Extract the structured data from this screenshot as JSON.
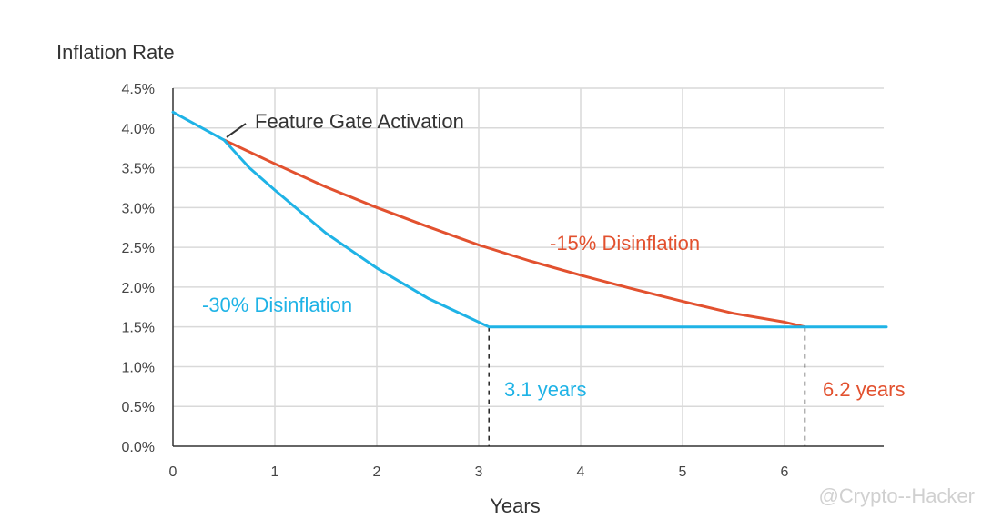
{
  "chart_data": {
    "type": "line",
    "title": "Inflation Rate",
    "xlabel": "Years",
    "ylabel": "Inflation Rate",
    "xlim": [
      0,
      7
    ],
    "ylim": [
      0,
      4.5
    ],
    "grid": true,
    "x_ticks": [
      0,
      1,
      2,
      3,
      4,
      5,
      6
    ],
    "x_tick_labels": [
      "0",
      "1",
      "2",
      "3",
      "4",
      "5",
      "6"
    ],
    "y_ticks": [
      0,
      0.5,
      1,
      1.5,
      2,
      2.5,
      3,
      3.5,
      4,
      4.5
    ],
    "y_tick_labels": [
      "0.0%",
      "0.5%",
      "1.0%",
      "1.5%",
      "2.0%",
      "2.5%",
      "3.0%",
      "3.5%",
      "4.0%",
      "4.5%"
    ],
    "series": [
      {
        "name": "-15% Disinflation",
        "color": "#e2512f",
        "x": [
          0.5,
          1,
          1.5,
          2,
          2.5,
          3,
          3.5,
          4,
          4.5,
          5,
          5.5,
          6,
          6.2
        ],
        "y": [
          3.85,
          3.55,
          3.26,
          3.0,
          2.76,
          2.53,
          2.33,
          2.15,
          1.98,
          1.82,
          1.67,
          1.56,
          1.5
        ]
      },
      {
        "name": "-30% Disinflation",
        "color": "#1fb3e6",
        "x": [
          0,
          0.5,
          0.75,
          1,
          1.5,
          2,
          2.5,
          3.1,
          7
        ],
        "y": [
          4.2,
          3.85,
          3.5,
          3.22,
          2.68,
          2.24,
          1.86,
          1.5,
          1.5
        ]
      }
    ],
    "annotations": [
      {
        "text": "Feature Gate Activation",
        "x": 0.5,
        "y": 3.85,
        "color": "#333333"
      },
      {
        "text": "-15% Disinflation",
        "color": "#e2512f"
      },
      {
        "text": "-30% Disinflation",
        "color": "#1fb3e6"
      },
      {
        "text": "3.1 years",
        "x": 3.1,
        "color": "#1fb3e6"
      },
      {
        "text": "6.2 years",
        "x": 6.2,
        "color": "#e2512f"
      }
    ],
    "watermark": "@Crypto--Hacker"
  }
}
